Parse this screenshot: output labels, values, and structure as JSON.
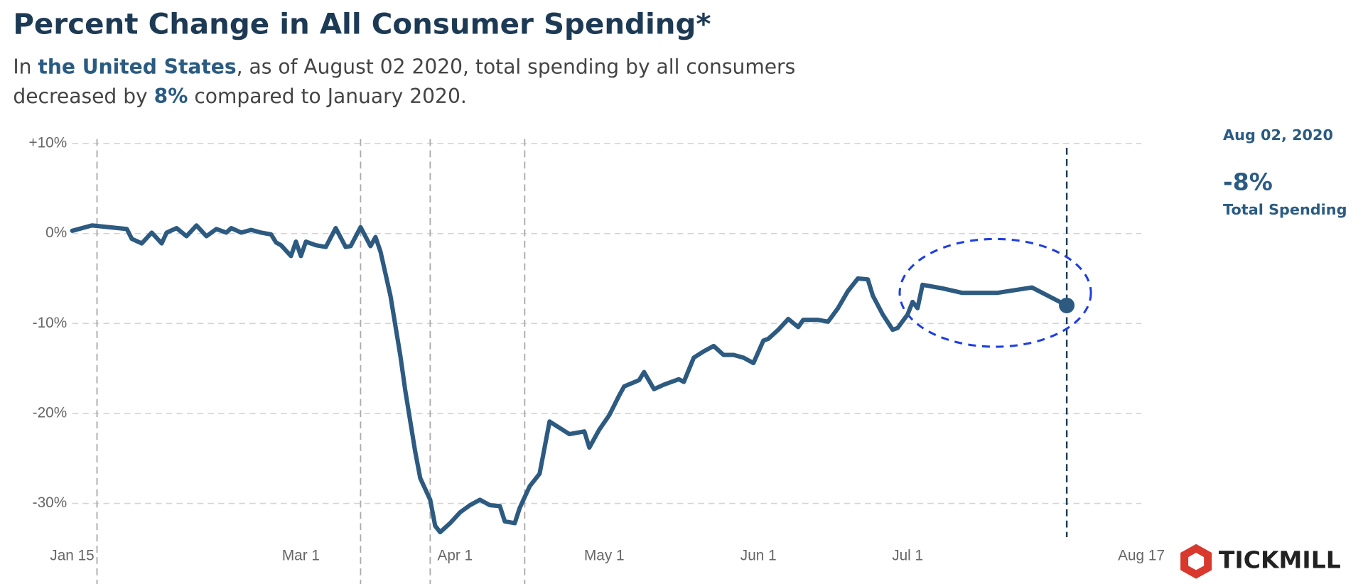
{
  "chart_data": {
    "type": "line",
    "title": "Percent Change in All Consumer Spending*",
    "subtitle": [
      [
        {
          "text": "In "
        },
        {
          "text": "the United States",
          "bold": true
        },
        {
          "text": ", as of August 02 2020, total spending by all consumers"
        }
      ],
      [
        {
          "text": "decreased by "
        },
        {
          "text": "8%",
          "bold": true
        },
        {
          "text": " compared to January 2020."
        }
      ]
    ],
    "xlim": [
      15,
      230
    ],
    "xticks": [
      {
        "value": 15,
        "label": "Jan 15"
      },
      {
        "value": 61,
        "label": "Mar 1"
      },
      {
        "value": 92,
        "label": "Apr 1"
      },
      {
        "value": 122,
        "label": "May 1"
      },
      {
        "value": 153,
        "label": "Jun 1"
      },
      {
        "value": 183,
        "label": "Jul 1"
      },
      {
        "value": 230,
        "label": "Aug 17"
      }
    ],
    "ylim": [
      -35,
      10.5
    ],
    "yticks": [
      {
        "value": 10,
        "label": "+10%"
      },
      {
        "value": 0,
        "label": "0%"
      },
      {
        "value": -10,
        "label": "-10%"
      },
      {
        "value": -20,
        "label": "-20%"
      },
      {
        "value": -30,
        "label": "-30%"
      }
    ],
    "grid": true,
    "event_lines": [
      20,
      73,
      87,
      106
    ],
    "current_line": 215,
    "series": [
      {
        "name": "Total Spending",
        "color": "#2d5a80",
        "x": [
          15,
          19,
          26,
          27,
          29,
          31,
          33,
          34,
          36,
          38,
          40,
          42,
          44,
          46,
          47,
          49,
          51,
          53,
          55,
          56,
          57,
          59,
          60,
          61,
          62,
          64,
          66,
          68,
          70,
          71,
          73,
          75,
          76,
          77,
          79,
          81,
          82,
          84,
          85,
          87,
          88,
          89,
          91,
          93,
          95,
          97,
          99,
          101,
          102,
          104,
          105,
          107,
          109,
          110,
          111,
          113,
          115,
          118,
          119,
          121,
          123,
          125,
          126,
          129,
          130,
          132,
          134,
          137,
          138,
          140,
          142,
          144,
          146,
          148,
          150,
          152,
          154,
          155,
          157,
          159,
          161,
          162,
          165,
          167,
          169,
          171,
          173,
          175,
          176,
          178,
          180,
          181,
          183,
          184,
          185,
          186,
          190,
          194,
          201,
          208,
          215
        ],
        "values": [
          0.3,
          0.9,
          0.5,
          -0.6,
          -1.1,
          0.1,
          -1.1,
          0.1,
          0.6,
          -0.3,
          0.9,
          -0.3,
          0.5,
          0.1,
          0.6,
          0.1,
          0.4,
          0.1,
          -0.1,
          -1.0,
          -1.3,
          -2.5,
          -0.9,
          -2.5,
          -0.9,
          -1.3,
          -1.5,
          0.6,
          -1.5,
          -1.4,
          0.7,
          -1.4,
          -0.4,
          -2.0,
          -6.9,
          -13.6,
          -17.5,
          -24.3,
          -27.2,
          -29.6,
          -32.5,
          -33.2,
          -32.2,
          -31.0,
          -30.2,
          -29.6,
          -30.2,
          -30.3,
          -32.0,
          -32.2,
          -30.5,
          -28.1,
          -26.7,
          -23.8,
          -20.9,
          -21.6,
          -22.3,
          -22.0,
          -23.8,
          -21.8,
          -20.2,
          -18.0,
          -17.0,
          -16.3,
          -15.4,
          -17.3,
          -16.8,
          -16.2,
          -16.5,
          -13.8,
          -13.1,
          -12.5,
          -13.5,
          -13.5,
          -13.8,
          -14.4,
          -11.9,
          -11.7,
          -10.7,
          -9.5,
          -10.4,
          -9.6,
          -9.6,
          -9.8,
          -8.3,
          -6.4,
          -5.0,
          -5.1,
          -6.9,
          -9.0,
          -10.7,
          -10.5,
          -9.0,
          -7.6,
          -8.3,
          -5.7,
          -6.1,
          -6.6,
          -6.6,
          -6.0,
          -8
        ]
      }
    ],
    "annotation": {
      "date": "Aug 02, 2020",
      "value": "-8%",
      "label": "Total Spending"
    },
    "brand": "TICKMILL"
  }
}
